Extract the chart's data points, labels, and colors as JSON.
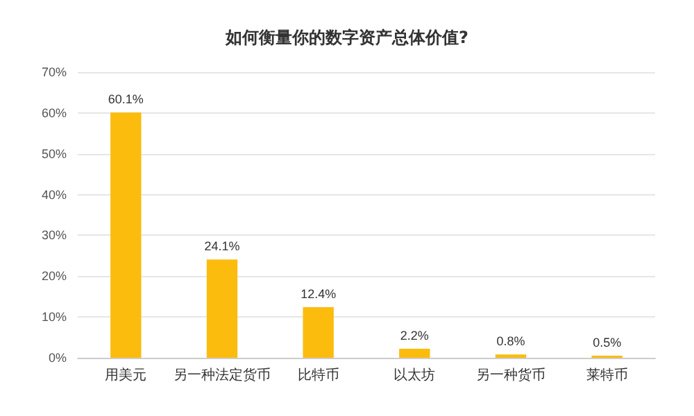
{
  "chart_data": {
    "type": "bar",
    "title": "如何衡量你的数字资产总体价值?",
    "categories": [
      "用美元",
      "另一种法定货币",
      "比特币",
      "以太坊",
      "另一种货币",
      "莱特币"
    ],
    "values": [
      60.1,
      24.1,
      12.4,
      2.2,
      0.8,
      0.5
    ],
    "value_labels": [
      "60.1%",
      "24.1%",
      "12.4%",
      "2.2%",
      "0.8%",
      "0.5%"
    ],
    "color": "#fbbc0e",
    "ylim": [
      0,
      70
    ],
    "yticks": [
      {
        "value": 0,
        "label": "0%"
      },
      {
        "value": 10,
        "label": "10%"
      },
      {
        "value": 20,
        "label": "20%"
      },
      {
        "value": 30,
        "label": "30%"
      },
      {
        "value": 40,
        "label": "40%"
      },
      {
        "value": 50,
        "label": "50%"
      },
      {
        "value": 60,
        "label": "60%"
      },
      {
        "value": 70,
        "label": "70%"
      }
    ],
    "grid": "y"
  }
}
